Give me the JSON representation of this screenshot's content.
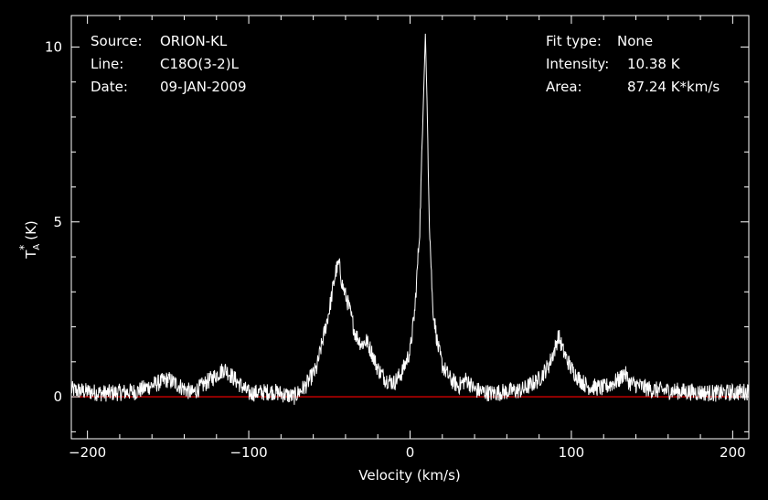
{
  "info": {
    "left": [
      {
        "key": "Source:",
        "value": "ORION-KL"
      },
      {
        "key": "Line:",
        "value": "C18O(3-2)L"
      },
      {
        "key": "Date:",
        "value": "09-JAN-2009"
      }
    ],
    "right": [
      {
        "key": "Fit type:",
        "value": "None"
      },
      {
        "key": "Intensity:",
        "value": "10.38 K"
      },
      {
        "key": "Area:",
        "value": "87.24 K*km/s"
      }
    ]
  },
  "chart_data": {
    "type": "line",
    "xlabel": "Velocity (km/s)",
    "ylabel_main": "T",
    "ylabel_sup": "*",
    "ylabel_sub": "A",
    "ylabel_unit": "(K)",
    "xlim": [
      -210,
      210
    ],
    "ylim": [
      -1.2,
      10.9
    ],
    "xticks": [
      -200,
      -100,
      0,
      100,
      200
    ],
    "xtick_labels": [
      "−200",
      "−100",
      "0",
      "100",
      "200"
    ],
    "yticks": [
      0,
      5,
      10
    ],
    "ytick_labels": [
      "0",
      "5",
      "10"
    ],
    "baseline": 0,
    "colors": {
      "spectrum": "#ffffff",
      "baseline": "#ff0000",
      "frame": "#ffffff",
      "background": "#000000"
    },
    "series": [
      {
        "x": [
          -210,
          -190,
          -170,
          -150,
          -135,
          -115,
          -100,
          -85,
          -72,
          -65,
          -58,
          -50,
          -46,
          -44,
          -42,
          -38,
          -34,
          -30,
          -27,
          -24,
          -20,
          -15,
          -10,
          -5,
          0,
          3,
          6,
          8,
          9.5,
          10.5,
          12,
          14,
          17,
          20,
          25,
          30,
          35,
          40,
          50,
          60,
          70,
          80,
          86,
          90,
          92,
          95,
          100,
          105,
          110,
          120,
          130,
          133,
          136,
          150,
          170,
          190,
          210
        ],
        "y": [
          0.2,
          0.1,
          0.15,
          0.5,
          0.1,
          0.8,
          0.1,
          0.15,
          0.0,
          0.3,
          0.8,
          2.5,
          3.6,
          3.8,
          3.2,
          2.6,
          1.8,
          1.5,
          1.6,
          1.3,
          0.8,
          0.5,
          0.4,
          0.7,
          1.3,
          2.5,
          4.8,
          8.0,
          10.38,
          8.5,
          5.0,
          2.6,
          1.5,
          0.9,
          0.5,
          0.3,
          0.5,
          0.2,
          0.1,
          0.15,
          0.2,
          0.5,
          0.9,
          1.4,
          1.75,
          1.3,
          0.8,
          0.5,
          0.3,
          0.25,
          0.5,
          0.7,
          0.4,
          0.2,
          0.15,
          0.1,
          0.15
        ]
      }
    ]
  }
}
